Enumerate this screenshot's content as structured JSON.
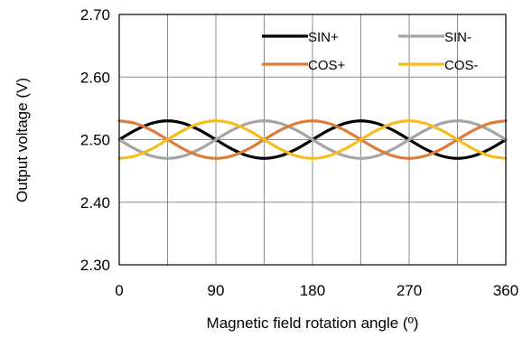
{
  "chart_data": {
    "type": "line",
    "title": "",
    "xlabel": "Magnetic field rotation angle (º)",
    "ylabel": "Output voltage (V)",
    "xlim": [
      0,
      360
    ],
    "ylim": [
      2.3,
      2.7
    ],
    "x_ticks": [
      "0",
      "90",
      "180",
      "270",
      "360"
    ],
    "y_ticks": [
      "2.70",
      "2.60",
      "2.50",
      "2.40",
      "2.30"
    ],
    "x_grid_step": 45,
    "grid": true,
    "legend_position": "top-right",
    "x": [
      0,
      15,
      30,
      45,
      60,
      75,
      90,
      105,
      120,
      135,
      150,
      165,
      180,
      195,
      210,
      225,
      240,
      255,
      270,
      285,
      300,
      315,
      330,
      345,
      360
    ],
    "series": [
      {
        "name": "SIN+",
        "color": "#000000",
        "values": [
          2.5,
          2.515,
          2.526,
          2.53,
          2.526,
          2.515,
          2.5,
          2.485,
          2.474,
          2.47,
          2.474,
          2.485,
          2.5,
          2.515,
          2.526,
          2.53,
          2.526,
          2.515,
          2.5,
          2.485,
          2.474,
          2.47,
          2.474,
          2.485,
          2.5
        ]
      },
      {
        "name": "SIN-",
        "color": "#a5a5a5",
        "values": [
          2.5,
          2.485,
          2.474,
          2.47,
          2.474,
          2.485,
          2.5,
          2.515,
          2.526,
          2.53,
          2.526,
          2.515,
          2.5,
          2.485,
          2.474,
          2.47,
          2.474,
          2.485,
          2.5,
          2.515,
          2.526,
          2.53,
          2.526,
          2.515,
          2.5
        ]
      },
      {
        "name": "COS+",
        "color": "#e07b39",
        "values": [
          2.53,
          2.526,
          2.515,
          2.5,
          2.485,
          2.474,
          2.47,
          2.474,
          2.485,
          2.5,
          2.515,
          2.526,
          2.53,
          2.526,
          2.515,
          2.5,
          2.485,
          2.474,
          2.47,
          2.474,
          2.485,
          2.5,
          2.515,
          2.526,
          2.53
        ]
      },
      {
        "name": "COS-",
        "color": "#f5bd1f",
        "values": [
          2.47,
          2.474,
          2.485,
          2.5,
          2.515,
          2.526,
          2.53,
          2.526,
          2.515,
          2.5,
          2.485,
          2.474,
          2.47,
          2.474,
          2.485,
          2.5,
          2.515,
          2.526,
          2.53,
          2.526,
          2.515,
          2.5,
          2.485,
          2.474,
          2.47
        ]
      }
    ]
  }
}
